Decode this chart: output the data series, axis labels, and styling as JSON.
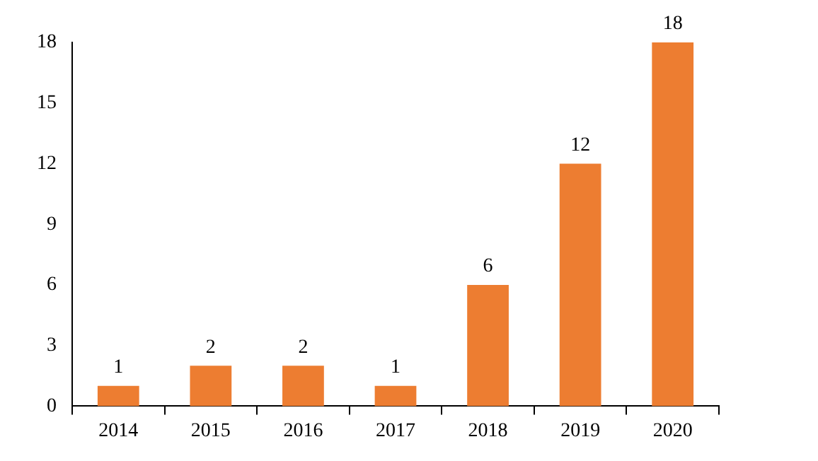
{
  "chart_data": {
    "type": "bar",
    "categories": [
      "2014",
      "2015",
      "2016",
      "2017",
      "2018",
      "2019",
      "2020"
    ],
    "values": [
      1,
      2,
      2,
      1,
      6,
      12,
      18
    ],
    "color": "#ed7d31",
    "ylim": [
      0,
      18
    ],
    "yticks": [
      0,
      3,
      6,
      9,
      12,
      15,
      18
    ],
    "grid": false,
    "data_labels": true
  }
}
